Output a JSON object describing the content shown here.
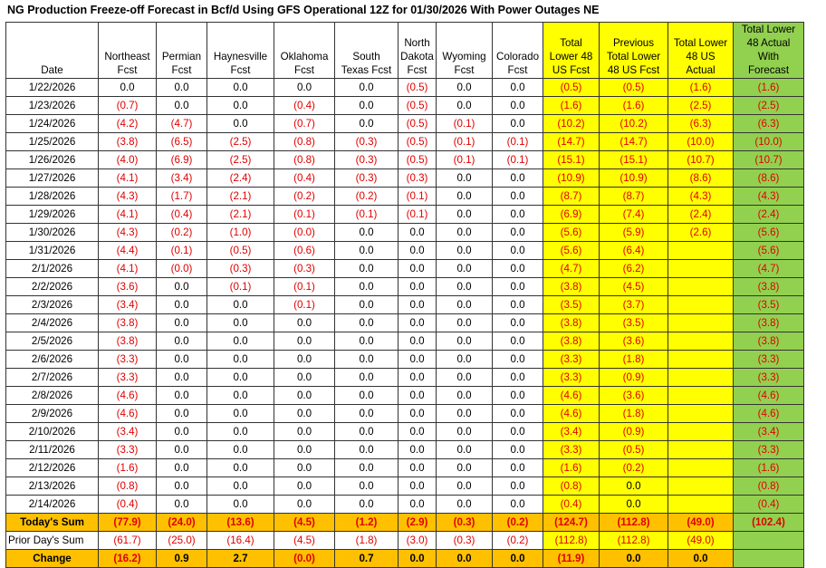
{
  "title": "NG Production Freeze-off Forecast in Bcf/d Using GFS Operational 12Z for 01/30/2026 With Power Outages NE",
  "headers": [
    [
      "Date"
    ],
    [
      "Northeast",
      "Fcst"
    ],
    [
      "Permian",
      "Fcst"
    ],
    [
      "Haynesville",
      "Fcst"
    ],
    [
      "Oklahoma",
      "Fcst"
    ],
    [
      "South",
      "Texas Fcst"
    ],
    [
      "North",
      "Dakota",
      "Fcst"
    ],
    [
      "Wyoming",
      "Fcst"
    ],
    [
      "Colorado",
      "Fcst"
    ],
    [
      "Total",
      "Lower 48",
      "US Fcst"
    ],
    [
      "Previous",
      "Total Lower",
      "48 US Fcst"
    ],
    [
      "Total Lower",
      "48 US",
      "Actual"
    ],
    [
      "Total Lower",
      "48 Actual",
      "With",
      "Forecast"
    ]
  ],
  "rows": [
    [
      "1/22/2026",
      "0.0",
      "0.0",
      "0.0",
      "0.0",
      "0.0",
      "(0.5)",
      "0.0",
      "0.0",
      "(0.5)",
      "(0.5)",
      "(1.6)",
      "(1.6)"
    ],
    [
      "1/23/2026",
      "(0.7)",
      "0.0",
      "0.0",
      "(0.4)",
      "0.0",
      "(0.5)",
      "0.0",
      "0.0",
      "(1.6)",
      "(1.6)",
      "(2.5)",
      "(2.5)"
    ],
    [
      "1/24/2026",
      "(4.2)",
      "(4.7)",
      "0.0",
      "(0.7)",
      "0.0",
      "(0.5)",
      "(0.1)",
      "0.0",
      "(10.2)",
      "(10.2)",
      "(6.3)",
      "(6.3)"
    ],
    [
      "1/25/2026",
      "(3.8)",
      "(6.5)",
      "(2.5)",
      "(0.8)",
      "(0.3)",
      "(0.5)",
      "(0.1)",
      "(0.1)",
      "(14.7)",
      "(14.7)",
      "(10.0)",
      "(10.0)"
    ],
    [
      "1/26/2026",
      "(4.0)",
      "(6.9)",
      "(2.5)",
      "(0.8)",
      "(0.3)",
      "(0.5)",
      "(0.1)",
      "(0.1)",
      "(15.1)",
      "(15.1)",
      "(10.7)",
      "(10.7)"
    ],
    [
      "1/27/2026",
      "(4.1)",
      "(3.4)",
      "(2.4)",
      "(0.4)",
      "(0.3)",
      "(0.3)",
      "0.0",
      "0.0",
      "(10.9)",
      "(10.9)",
      "(8.6)",
      "(8.6)"
    ],
    [
      "1/28/2026",
      "(4.3)",
      "(1.7)",
      "(2.1)",
      "(0.2)",
      "(0.2)",
      "(0.1)",
      "0.0",
      "0.0",
      "(8.7)",
      "(8.7)",
      "(4.3)",
      "(4.3)"
    ],
    [
      "1/29/2026",
      "(4.1)",
      "(0.4)",
      "(2.1)",
      "(0.1)",
      "(0.1)",
      "(0.1)",
      "0.0",
      "0.0",
      "(6.9)",
      "(7.4)",
      "(2.4)",
      "(2.4)"
    ],
    [
      "1/30/2026",
      "(4.3)",
      "(0.2)",
      "(1.0)",
      "(0.0)",
      "0.0",
      "0.0",
      "0.0",
      "0.0",
      "(5.6)",
      "(5.9)",
      "(2.6)",
      "(5.6)"
    ],
    [
      "1/31/2026",
      "(4.4)",
      "(0.1)",
      "(0.5)",
      "(0.6)",
      "0.0",
      "0.0",
      "0.0",
      "0.0",
      "(5.6)",
      "(6.4)",
      "",
      "(5.6)"
    ],
    [
      "2/1/2026",
      "(4.1)",
      "(0.0)",
      "(0.3)",
      "(0.3)",
      "0.0",
      "0.0",
      "0.0",
      "0.0",
      "(4.7)",
      "(6.2)",
      "",
      "(4.7)"
    ],
    [
      "2/2/2026",
      "(3.6)",
      "0.0",
      "(0.1)",
      "(0.1)",
      "0.0",
      "0.0",
      "0.0",
      "0.0",
      "(3.8)",
      "(4.5)",
      "",
      "(3.8)"
    ],
    [
      "2/3/2026",
      "(3.4)",
      "0.0",
      "0.0",
      "(0.1)",
      "0.0",
      "0.0",
      "0.0",
      "0.0",
      "(3.5)",
      "(3.7)",
      "",
      "(3.5)"
    ],
    [
      "2/4/2026",
      "(3.8)",
      "0.0",
      "0.0",
      "0.0",
      "0.0",
      "0.0",
      "0.0",
      "0.0",
      "(3.8)",
      "(3.5)",
      "",
      "(3.8)"
    ],
    [
      "2/5/2026",
      "(3.8)",
      "0.0",
      "0.0",
      "0.0",
      "0.0",
      "0.0",
      "0.0",
      "0.0",
      "(3.8)",
      "(3.6)",
      "",
      "(3.8)"
    ],
    [
      "2/6/2026",
      "(3.3)",
      "0.0",
      "0.0",
      "0.0",
      "0.0",
      "0.0",
      "0.0",
      "0.0",
      "(3.3)",
      "(1.8)",
      "",
      "(3.3)"
    ],
    [
      "2/7/2026",
      "(3.3)",
      "0.0",
      "0.0",
      "0.0",
      "0.0",
      "0.0",
      "0.0",
      "0.0",
      "(3.3)",
      "(0.9)",
      "",
      "(3.3)"
    ],
    [
      "2/8/2026",
      "(4.6)",
      "0.0",
      "0.0",
      "0.0",
      "0.0",
      "0.0",
      "0.0",
      "0.0",
      "(4.6)",
      "(3.6)",
      "",
      "(4.6)"
    ],
    [
      "2/9/2026",
      "(4.6)",
      "0.0",
      "0.0",
      "0.0",
      "0.0",
      "0.0",
      "0.0",
      "0.0",
      "(4.6)",
      "(1.8)",
      "",
      "(4.6)"
    ],
    [
      "2/10/2026",
      "(3.4)",
      "0.0",
      "0.0",
      "0.0",
      "0.0",
      "0.0",
      "0.0",
      "0.0",
      "(3.4)",
      "(0.9)",
      "",
      "(3.4)"
    ],
    [
      "2/11/2026",
      "(3.3)",
      "0.0",
      "0.0",
      "0.0",
      "0.0",
      "0.0",
      "0.0",
      "0.0",
      "(3.3)",
      "(0.5)",
      "",
      "(3.3)"
    ],
    [
      "2/12/2026",
      "(1.6)",
      "0.0",
      "0.0",
      "0.0",
      "0.0",
      "0.0",
      "0.0",
      "0.0",
      "(1.6)",
      "(0.2)",
      "",
      "(1.6)"
    ],
    [
      "2/13/2026",
      "(0.8)",
      "0.0",
      "0.0",
      "0.0",
      "0.0",
      "0.0",
      "0.0",
      "0.0",
      "(0.8)",
      "0.0",
      "",
      "(0.8)"
    ],
    [
      "2/14/2026",
      "(0.4)",
      "0.0",
      "0.0",
      "0.0",
      "0.0",
      "0.0",
      "0.0",
      "0.0",
      "(0.4)",
      "0.0",
      "",
      "(0.4)"
    ]
  ],
  "todays_sum": [
    "Today's Sum",
    "(77.9)",
    "(24.0)",
    "(13.6)",
    "(4.5)",
    "(1.2)",
    "(2.9)",
    "(0.3)",
    "(0.2)",
    "(124.7)",
    "(112.8)",
    "(49.0)",
    "(102.4)"
  ],
  "prior_sum": [
    "Prior Day's Sum",
    "(61.7)",
    "(25.0)",
    "(16.4)",
    "(4.5)",
    "(1.8)",
    "(3.0)",
    "(0.3)",
    "(0.2)",
    "(112.8)",
    "(112.8)",
    "(49.0)",
    ""
  ],
  "change": [
    "Change",
    "(16.2)",
    "0.9",
    "2.7",
    "(0.0)",
    "0.7",
    "0.0",
    "0.0",
    "0.0",
    "(11.9)",
    "0.0",
    "0.0",
    ""
  ],
  "colors": {
    "yellow": "#ffff00",
    "green": "#92d050",
    "orange": "#ffc000",
    "negative": "#e00000"
  }
}
